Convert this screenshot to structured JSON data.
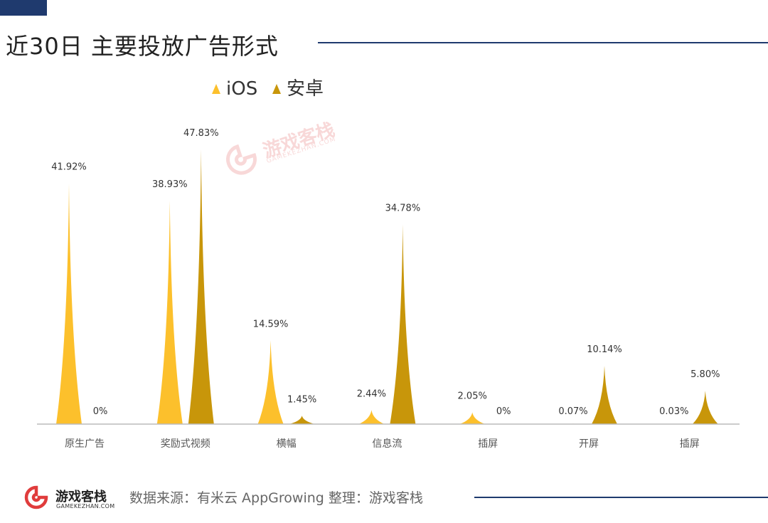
{
  "header": {
    "title": "近30日 主要投放广告形式"
  },
  "chart_data": {
    "type": "bar",
    "title": "近30日 主要投放广告形式",
    "categories": [
      "原生广告",
      "奖励式视频",
      "横幅",
      "信息流",
      "插屏",
      "开屏",
      "插屏"
    ],
    "series": [
      {
        "name": "iOS",
        "color": "#fcc02c",
        "values": [
          41.92,
          38.93,
          14.59,
          2.44,
          2.05,
          0.07,
          0.03
        ],
        "labels": [
          "41.92%",
          "38.93%",
          "14.59%",
          "2.44%",
          "2.05%",
          "0.07%",
          "0.03%"
        ]
      },
      {
        "name": "安卓",
        "color": "#c8960a",
        "values": [
          0,
          47.83,
          1.45,
          34.78,
          0,
          10.14,
          5.8
        ],
        "labels": [
          "0%",
          "47.83%",
          "1.45%",
          "34.78%",
          "0%",
          "10.14%",
          "5.80%"
        ]
      }
    ],
    "ylim": [
      0,
      48
    ],
    "legend": "top-center",
    "grid": false
  },
  "watermark": {
    "text": "游戏客栈",
    "sub": "GAMEKEZHAN.COM"
  },
  "footer": {
    "brand": "游戏客栈",
    "domain": "GAMEKEZHAN.COM",
    "source": "数据来源：有米云 AppGrowing   整理：游戏客栈"
  }
}
